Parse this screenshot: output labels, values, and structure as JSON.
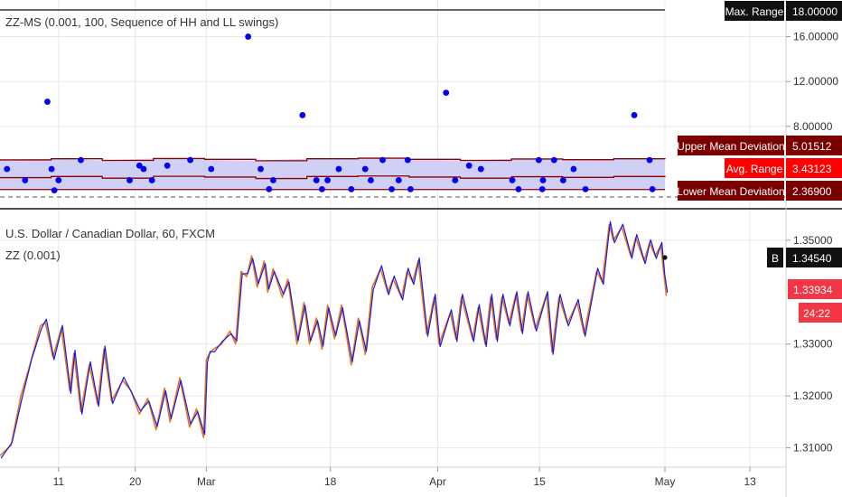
{
  "colors": {
    "bg": "#ffffff",
    "grid": "#e8e8e8",
    "divider": "#4d4d4d",
    "dot": "#0000ee",
    "band_fill": "#c8c8f6",
    "band_line": "#8b0000",
    "zz_orange": "#e87718",
    "zz_blue": "#1a1adf",
    "dark_red_label": "#7a0000",
    "red_label": "#ff0000",
    "black_label": "#111111",
    "price_red": "#f23645",
    "axis_text": "#333333"
  },
  "top_panel": {
    "title": "ZZ-MS (0.001, 100, Sequence of HH and LL swings)",
    "axis": {
      "ylim": [
        0.9,
        18.3
      ],
      "ticks": [
        {
          "v": 16,
          "label": "16.00000"
        },
        {
          "v": 12,
          "label": "12.00000"
        },
        {
          "v": 8,
          "label": "8.00000"
        }
      ]
    },
    "labels": {
      "max_range": {
        "name": "Max. Range",
        "value": "18.00000"
      },
      "upper_mean_deviation": {
        "name": "Upper Mean Deviation",
        "value": "5.01512"
      },
      "avg_range": {
        "name": "Avg. Range",
        "value": "3.43123"
      },
      "lower_mean_deviation": {
        "name": "Lower Mean Deviation",
        "value": "2.36900"
      }
    }
  },
  "bottom_panel": {
    "title": "U.S. Dollar / Canadian Dollar, 60, FXCM",
    "subtitle": "ZZ (0.001)",
    "axis": {
      "ylim": [
        1.3068,
        1.3552
      ],
      "ticks": [
        {
          "v": 1.35,
          "label": "1.35000"
        },
        {
          "v": 1.33,
          "label": "1.33000"
        },
        {
          "v": 1.32,
          "label": "1.32000"
        },
        {
          "v": 1.31,
          "label": "1.31000"
        }
      ]
    },
    "last_price": {
      "badge": "B",
      "value": "1.34540"
    },
    "close_price": {
      "value": "1.33934"
    },
    "countdown": "24:22"
  },
  "x_axis": {
    "ticks": [
      {
        "t": 8.4,
        "label": "11"
      },
      {
        "t": 19.4,
        "label": "20"
      },
      {
        "t": 29.6,
        "label": "Mar"
      },
      {
        "t": 47.4,
        "label": "18"
      },
      {
        "t": 62.8,
        "label": "Apr"
      },
      {
        "t": 77.4,
        "label": "15"
      },
      {
        "t": 95.4,
        "label": "May"
      },
      {
        "t": 107.6,
        "label": "13"
      }
    ]
  },
  "chart_data": [
    {
      "type": "scatter",
      "title": "ZZ-MS (0.001, 100, Sequence of HH and LL swings)",
      "x_unit": "days from start",
      "ylim": [
        0.9,
        18.3
      ],
      "points": [
        [
          1.0,
          4.2
        ],
        [
          3.6,
          3.2
        ],
        [
          6.8,
          10.2
        ],
        [
          7.4,
          4.2
        ],
        [
          7.8,
          2.3
        ],
        [
          8.4,
          3.2
        ],
        [
          11.6,
          5.0
        ],
        [
          18.6,
          3.2
        ],
        [
          20.0,
          4.5
        ],
        [
          20.6,
          4.2
        ],
        [
          21.8,
          3.2
        ],
        [
          24.0,
          4.5
        ],
        [
          27.3,
          5.0
        ],
        [
          30.3,
          4.2
        ],
        [
          35.6,
          16.0
        ],
        [
          37.4,
          4.2
        ],
        [
          38.6,
          2.4
        ],
        [
          39.2,
          3.2
        ],
        [
          43.4,
          9.0
        ],
        [
          45.4,
          3.2
        ],
        [
          46.2,
          2.4
        ],
        [
          47.0,
          3.2
        ],
        [
          48.6,
          4.2
        ],
        [
          50.4,
          2.4
        ],
        [
          52.4,
          4.2
        ],
        [
          53.2,
          3.2
        ],
        [
          54.9,
          5.0
        ],
        [
          56.2,
          2.4
        ],
        [
          57.2,
          3.2
        ],
        [
          58.5,
          5.0
        ],
        [
          58.9,
          2.4
        ],
        [
          64.0,
          11.0
        ],
        [
          65.3,
          3.2
        ],
        [
          67.3,
          4.5
        ],
        [
          69.0,
          4.2
        ],
        [
          73.5,
          3.2
        ],
        [
          74.4,
          2.4
        ],
        [
          77.3,
          5.0
        ],
        [
          77.8,
          2.4
        ],
        [
          77.9,
          3.2
        ],
        [
          79.5,
          5.0
        ],
        [
          80.8,
          3.2
        ],
        [
          82.3,
          4.2
        ],
        [
          84.0,
          2.4
        ],
        [
          91.0,
          9.0
        ],
        [
          93.2,
          5.0
        ],
        [
          93.6,
          2.4
        ]
      ],
      "bands": {
        "upper_mean_deviation": 5.01512,
        "avg_range": 3.43123,
        "lower_mean_deviation": 2.369,
        "max_range": 18.0
      }
    },
    {
      "type": "line",
      "title": "U.S. Dollar / Canadian Dollar, 60, FXCM",
      "x_unit": "days from start",
      "ylim": [
        1.3068,
        1.3552
      ],
      "series": [
        {
          "name": "ZZ (0.001)",
          "x": [
            0,
            1.6,
            3,
            4.4,
            5.8,
            6.5,
            7.6,
            8.8,
            10,
            10.6,
            11.6,
            12.8,
            14,
            14.9,
            16,
            17.6,
            18.8,
            20,
            21.2,
            22.4,
            23.6,
            24.4,
            25.8,
            27.2,
            28.2,
            29.2,
            29.6,
            30,
            30.6,
            31.8,
            33,
            33.8,
            34.6,
            35.4,
            36.1,
            36.9,
            37.9,
            38.4,
            39.2,
            40.5,
            41.3,
            42.6,
            43.6,
            44.4,
            45.4,
            46.2,
            47,
            48,
            49,
            50.4,
            51.4,
            52.4,
            53.4,
            54.6,
            55.6,
            56.4,
            57.6,
            58.4,
            59.2,
            60,
            61.2,
            62.3,
            63,
            64.6,
            65.4,
            66.2,
            67.8,
            68.6,
            69.6,
            70.4,
            71.2,
            72,
            73,
            74,
            74.8,
            75.6,
            76.8,
            78.4,
            79.2,
            80.2,
            81.4,
            82.8,
            83.8,
            85.6,
            86.4,
            87.4,
            88,
            89.2,
            90.5,
            91.2,
            92.4,
            93.2,
            94,
            94.8,
            95.2,
            95.6
          ],
          "y": [
            1.3085,
            1.3105,
            1.32,
            1.3265,
            1.3335,
            1.3342,
            1.3275,
            1.333,
            1.321,
            1.3282,
            1.317,
            1.326,
            1.3185,
            1.329,
            1.319,
            1.323,
            1.321,
            1.3165,
            1.3195,
            1.3135,
            1.3215,
            1.315,
            1.3235,
            1.314,
            1.3175,
            1.312,
            1.327,
            1.328,
            1.329,
            1.33,
            1.3325,
            1.33,
            1.344,
            1.343,
            1.347,
            1.341,
            1.346,
            1.34,
            1.3445,
            1.339,
            1.3425,
            1.33,
            1.338,
            1.33,
            1.335,
            1.329,
            1.3375,
            1.331,
            1.3375,
            1.326,
            1.335,
            1.328,
            1.341,
            1.3445,
            1.34,
            1.3425,
            1.339,
            1.344,
            1.342,
            1.346,
            1.332,
            1.339,
            1.33,
            1.336,
            1.331,
            1.339,
            1.331,
            1.337,
            1.33,
            1.339,
            1.331,
            1.339,
            1.334,
            1.3395,
            1.3325,
            1.3395,
            1.333,
            1.3395,
            1.3285,
            1.339,
            1.334,
            1.338,
            1.332,
            1.344,
            1.342,
            1.353,
            1.35,
            1.3525,
            1.347,
            1.3505,
            1.346,
            1.3495,
            1.347,
            1.349,
            1.344,
            1.3393
          ]
        }
      ],
      "last_price": 1.3454,
      "close_price": 1.33934,
      "yticks": [
        1.35,
        1.33,
        1.32,
        1.31
      ]
    }
  ]
}
